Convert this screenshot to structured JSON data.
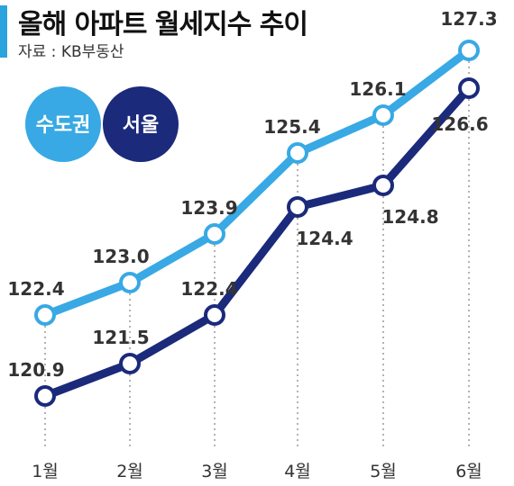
{
  "header": {
    "title": "올해 아파트 월세지수 추이",
    "source": "자료 : KB부동산"
  },
  "colors": {
    "metro": "#38a9e4",
    "seoul": "#1b2a7b",
    "accent": "#2ba3dc",
    "grid": "#9a9a9a"
  },
  "chart_data": {
    "type": "line",
    "title": "올해 아파트 월세지수 추이",
    "categories": [
      "1월",
      "2월",
      "3월",
      "4월",
      "5월",
      "6월"
    ],
    "series": [
      {
        "name": "수도권",
        "values": [
          122.4,
          123.0,
          123.9,
          125.4,
          126.1,
          127.3
        ]
      },
      {
        "name": "서울",
        "values": [
          120.9,
          121.5,
          122.4,
          124.4,
          124.8,
          126.6
        ]
      }
    ],
    "data_labels": {
      "수도권": [
        "122.4",
        "123.0",
        "123.9",
        "125.4",
        "126.1",
        "127.3"
      ],
      "서울": [
        "120.9",
        "121.5",
        "122.4",
        "124.4",
        "124.8",
        "126.6"
      ]
    },
    "legend_position": "top-left",
    "grid": "dotted vertical",
    "ylim": [
      120.9,
      127.3
    ]
  }
}
